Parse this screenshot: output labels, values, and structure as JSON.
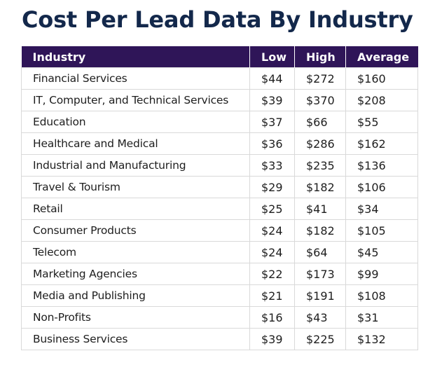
{
  "title": "Cost Per Lead Data By Industry",
  "table": {
    "headers": [
      "Industry",
      "Low",
      "High",
      "Average"
    ],
    "rows": [
      {
        "industry": "Financial Services",
        "low": "$44",
        "high": "$272",
        "average": "$160"
      },
      {
        "industry": "IT, Computer, and Technical Services",
        "low": "$39",
        "high": "$370",
        "average": "$208"
      },
      {
        "industry": "Education",
        "low": "$37",
        "high": "$66",
        "average": "$55"
      },
      {
        "industry": "Healthcare and Medical",
        "low": "$36",
        "high": "$286",
        "average": "$162"
      },
      {
        "industry": "Industrial and Manufacturing",
        "low": "$33",
        "high": "$235",
        "average": "$136"
      },
      {
        "industry": "Travel & Tourism",
        "low": "$29",
        "high": "$182",
        "average": "$106"
      },
      {
        "industry": "Retail",
        "low": "$25",
        "high": "$41",
        "average": "$34"
      },
      {
        "industry": "Consumer Products",
        "low": "$24",
        "high": "$182",
        "average": "$105"
      },
      {
        "industry": "Telecom",
        "low": "$24",
        "high": "$64",
        "average": "$45"
      },
      {
        "industry": "Marketing Agencies",
        "low": "$22",
        "high": "$173",
        "average": "$99"
      },
      {
        "industry": "Media and Publishing",
        "low": "$21",
        "high": "$191",
        "average": "$108"
      },
      {
        "industry": "Non-Profits",
        "low": "$16",
        "high": "$43",
        "average": "$31"
      },
      {
        "industry": "Business Services",
        "low": "$39",
        "high": "$225",
        "average": "$132"
      }
    ]
  },
  "colors": {
    "title": "#13284b",
    "header_bg": "#2f1558",
    "header_text": "#ffffff",
    "cell_text": "#1e1e1e",
    "grid": "#d9d9d9"
  }
}
